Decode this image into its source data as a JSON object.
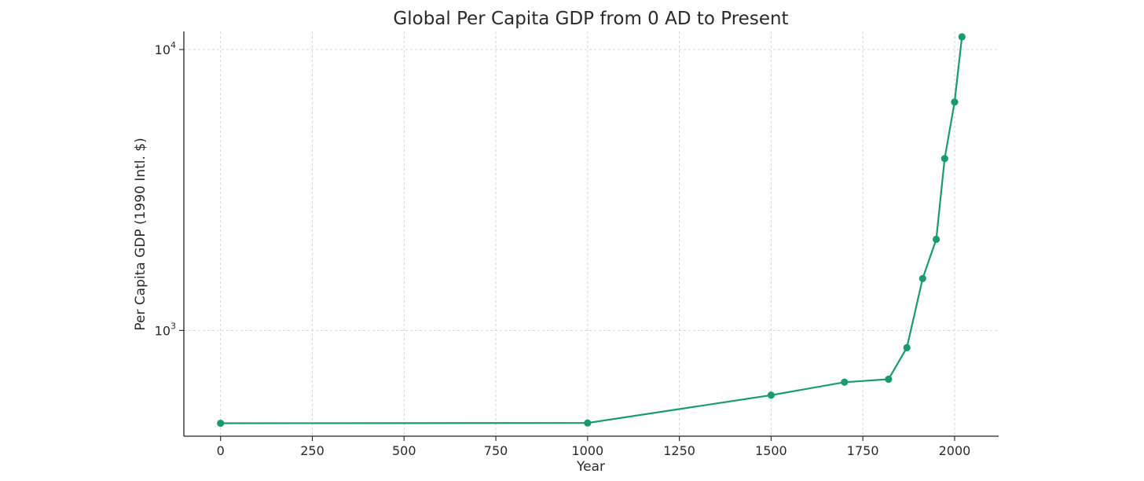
{
  "chart_data": {
    "type": "line",
    "title": "Global Per Capita GDP from 0 AD to Present",
    "xlabel": "Year",
    "ylabel": "Per Capita GDP (1990 Intl. $)",
    "yscale": "log",
    "xlim": [
      -100,
      2120
    ],
    "ylim": [
      420,
      11600
    ],
    "xticks": [
      0,
      250,
      500,
      750,
      1000,
      1250,
      1500,
      1750,
      2000
    ],
    "yticks": [
      {
        "value": 1000,
        "base": "10",
        "exp": "3"
      },
      {
        "value": 10000,
        "base": "10",
        "exp": "4"
      }
    ],
    "grid": true,
    "series": [
      {
        "color": "#1a9a6e",
        "x": [
          0,
          1000,
          1500,
          1700,
          1820,
          1870,
          1913,
          1950,
          1973,
          2000,
          2020
        ],
        "y": [
          467,
          468,
          588,
          654,
          670,
          868,
          1530,
          2110,
          4090,
          6500,
          11100
        ]
      }
    ]
  }
}
